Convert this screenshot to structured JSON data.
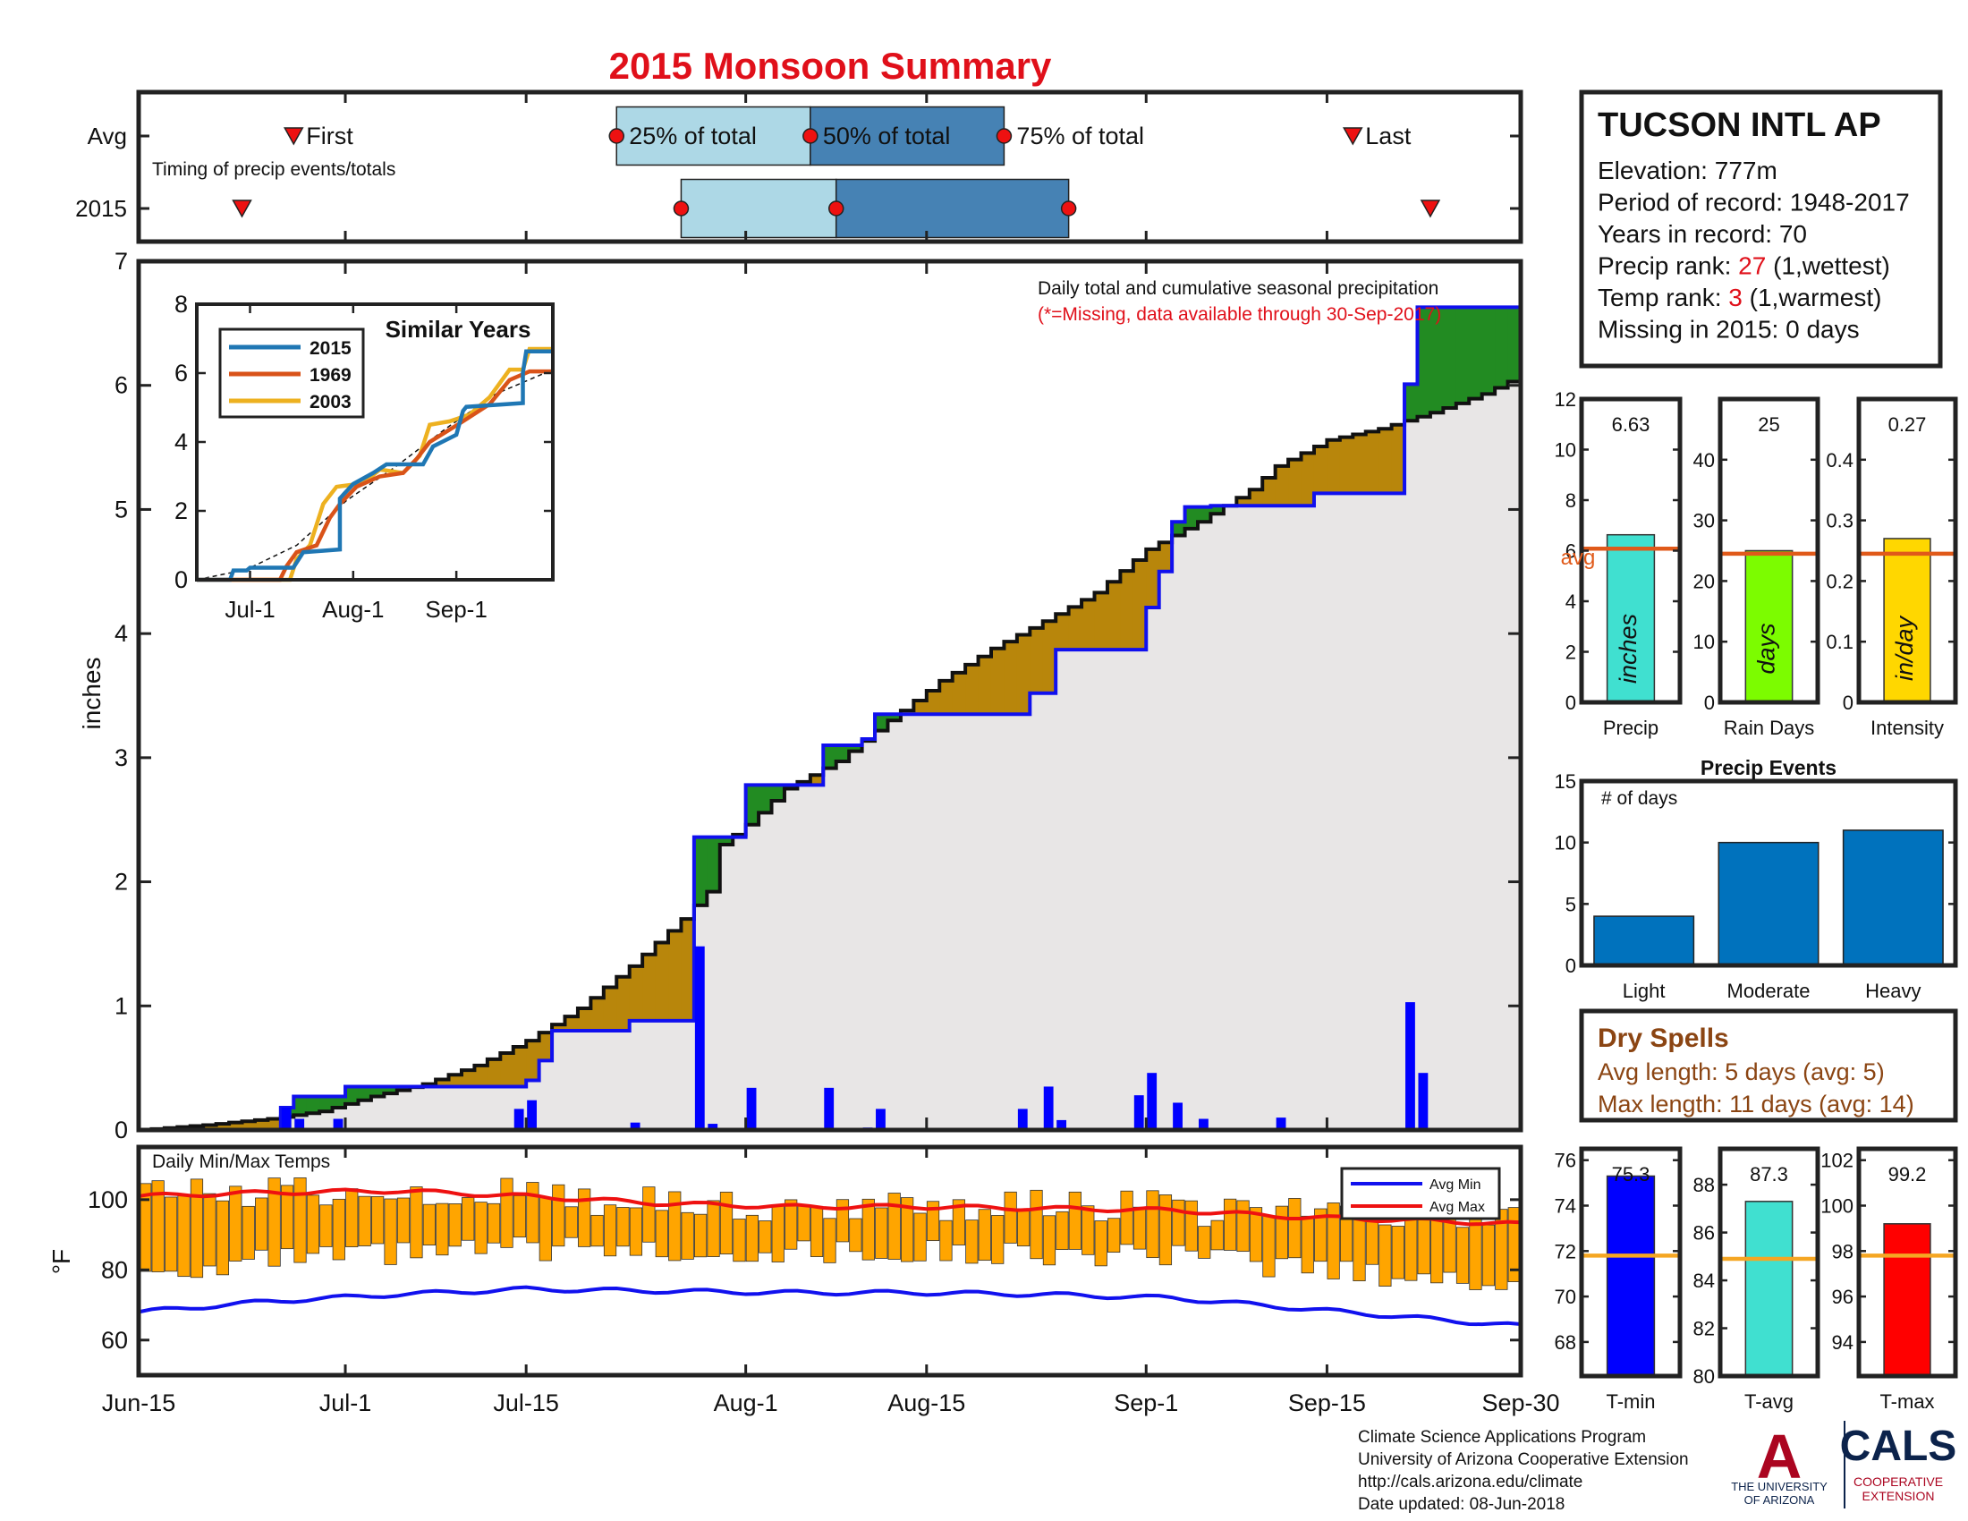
{
  "page": {
    "title": "2015 Monsoon Summary",
    "title_color": "#e0101a"
  },
  "footer": {
    "lines": [
      "Climate Science Applications Program",
      "University of Arizona Cooperative Extension",
      "http://cals.arizona.edu/climate",
      " Date updated: 08-Jun-2018"
    ],
    "logo_ua_letter": "A",
    "logo_ua_text": [
      "THE UNIVERSITY",
      "OF ARIZONA"
    ],
    "logo_cals": "CALS",
    "logo_cals_sub": [
      "COOPERATIVE",
      "EXTENSION"
    ]
  },
  "colors": {
    "above_avg": "#228b22",
    "below_avg": "#b8860b",
    "avg_fill": "#e8e6e6",
    "daily_bar": "#0000ff",
    "temp_bar": "#ffa500",
    "avg_max": "#ee1111",
    "avg_min": "#1111ee",
    "light_blue": "#add8e6",
    "mid_blue": "#4682b4",
    "marker_red": "#ee1111"
  },
  "chart_data": [
    {
      "id": "timing",
      "type": "timeline",
      "rows": [
        "Avg",
        "2015"
      ],
      "note": "Timing of precip events/totals",
      "labels": {
        "first": "First",
        "p25": "25% of total",
        "p50": "50% of total",
        "p75": "75% of total",
        "last": "Last"
      },
      "avg": {
        "first": "2015-06-27",
        "p25": "2015-07-22",
        "p50": "2015-08-06",
        "p75": "2015-08-21",
        "last": "2015-09-17"
      },
      "y2015": {
        "first": "2015-06-23",
        "p25": "2015-07-27",
        "p50": "2015-08-08",
        "p75": "2015-08-26",
        "last": "2015-09-23"
      }
    },
    {
      "id": "cumulative",
      "type": "area",
      "title": "Daily total and cumulative seasonal precipitation",
      "subtitle": "(*=Missing, data available through 30-Sep-2017)",
      "ylabel": "inches",
      "ylim": [
        0,
        7
      ],
      "yticks": [
        0,
        1,
        2,
        3,
        4,
        5,
        6,
        7
      ],
      "xlim": [
        "2015-06-15",
        "2015-09-30"
      ],
      "xticks": [
        "Jun-15",
        "Jul-1",
        "Jul-15",
        "Aug-1",
        "Aug-15",
        "Sep-1",
        "Sep-15",
        "Sep-30"
      ],
      "x_tick_days": [
        0,
        16,
        30,
        47,
        61,
        78,
        92,
        107
      ],
      "avg_cumulative": [
        [
          0,
          0
        ],
        [
          5,
          0.04
        ],
        [
          10,
          0.09
        ],
        [
          14,
          0.15
        ],
        [
          18,
          0.27
        ],
        [
          22,
          0.37
        ],
        [
          26,
          0.52
        ],
        [
          30,
          0.72
        ],
        [
          34,
          0.98
        ],
        [
          38,
          1.32
        ],
        [
          42,
          1.7
        ],
        [
          44,
          1.92
        ],
        [
          45,
          2.3
        ],
        [
          47,
          2.46
        ],
        [
          50,
          2.75
        ],
        [
          54,
          2.97
        ],
        [
          58,
          3.3
        ],
        [
          62,
          3.62
        ],
        [
          66,
          3.88
        ],
        [
          70,
          4.1
        ],
        [
          74,
          4.33
        ],
        [
          78,
          4.68
        ],
        [
          82,
          4.9
        ],
        [
          86,
          5.16
        ],
        [
          88,
          5.35
        ],
        [
          92,
          5.56
        ],
        [
          96,
          5.65
        ],
        [
          100,
          5.78
        ],
        [
          104,
          5.93
        ],
        [
          107,
          6.08
        ]
      ],
      "cum_2015": [
        [
          0,
          0
        ],
        [
          10,
          0
        ],
        [
          11,
          0.18
        ],
        [
          12,
          0.27
        ],
        [
          15,
          0.27
        ],
        [
          16,
          0.35
        ],
        [
          21,
          0.35
        ],
        [
          29,
          0.35
        ],
        [
          30,
          0.4
        ],
        [
          31,
          0.56
        ],
        [
          32,
          0.8
        ],
        [
          36,
          0.8
        ],
        [
          38,
          0.88
        ],
        [
          43,
          0.88
        ],
        [
          43,
          2.36
        ],
        [
          46,
          2.36
        ],
        [
          47,
          2.78
        ],
        [
          52,
          2.78
        ],
        [
          53,
          3.1
        ],
        [
          56,
          3.15
        ],
        [
          57,
          3.35
        ],
        [
          68,
          3.35
        ],
        [
          69,
          3.52
        ],
        [
          71,
          3.87
        ],
        [
          77,
          3.87
        ],
        [
          78,
          4.21
        ],
        [
          79,
          4.5
        ],
        [
          80,
          4.9
        ],
        [
          81,
          5.02
        ],
        [
          83,
          5.03
        ],
        [
          88,
          5.03
        ],
        [
          91,
          5.13
        ],
        [
          98,
          5.13
        ],
        [
          98,
          6.01
        ],
        [
          99,
          6.63
        ],
        [
          107,
          6.63
        ]
      ],
      "daily_2015": [
        [
          11,
          0.18
        ],
        [
          12,
          0.09
        ],
        [
          15,
          0.09
        ],
        [
          29,
          0.17
        ],
        [
          30,
          0.24
        ],
        [
          38,
          0.06
        ],
        [
          43,
          1.48
        ],
        [
          44,
          0.05
        ],
        [
          47,
          0.34
        ],
        [
          53,
          0.34
        ],
        [
          56,
          0.02
        ],
        [
          57,
          0.17
        ],
        [
          68,
          0.17
        ],
        [
          70,
          0.35
        ],
        [
          71,
          0.08
        ],
        [
          77,
          0.28
        ],
        [
          78,
          0.46
        ],
        [
          80,
          0.22
        ],
        [
          82,
          0.09
        ],
        [
          88,
          0.1
        ],
        [
          98,
          1.03
        ],
        [
          99,
          0.46
        ]
      ]
    },
    {
      "id": "similar",
      "type": "line",
      "title": "Similar Years",
      "ylim": [
        0,
        8
      ],
      "yticks": [
        0,
        2,
        4,
        6,
        8
      ],
      "xticks": [
        "Jul-1",
        "Aug-1",
        "Sep-1"
      ],
      "x_tick_days": [
        16,
        47,
        78
      ],
      "series": [
        {
          "name": "2015",
          "color": "#1f77b4",
          "values": [
            [
              0,
              0
            ],
            [
              10,
              0
            ],
            [
              11,
              0.27
            ],
            [
              15,
              0.27
            ],
            [
              16,
              0.35
            ],
            [
              29,
              0.35
            ],
            [
              32,
              0.8
            ],
            [
              43,
              0.88
            ],
            [
              43,
              2.36
            ],
            [
              47,
              2.78
            ],
            [
              53,
              3.1
            ],
            [
              57,
              3.35
            ],
            [
              68,
              3.35
            ],
            [
              71,
              3.87
            ],
            [
              78,
              4.21
            ],
            [
              80,
              4.9
            ],
            [
              81,
              5.02
            ],
            [
              98,
              5.13
            ],
            [
              98,
              6.01
            ],
            [
              99,
              6.63
            ],
            [
              107,
              6.63
            ]
          ]
        },
        {
          "name": "1969",
          "color": "#d95319",
          "values": [
            [
              0,
              0
            ],
            [
              25,
              0
            ],
            [
              27,
              0.4
            ],
            [
              30,
              0.8
            ],
            [
              36,
              1.0
            ],
            [
              40,
              1.8
            ],
            [
              43,
              2.2
            ],
            [
              48,
              2.7
            ],
            [
              55,
              3.0
            ],
            [
              62,
              3.1
            ],
            [
              66,
              3.5
            ],
            [
              70,
              4.0
            ],
            [
              75,
              4.3
            ],
            [
              80,
              4.6
            ],
            [
              88,
              5.1
            ],
            [
              94,
              5.8
            ],
            [
              100,
              6.05
            ],
            [
              107,
              6.05
            ]
          ]
        },
        {
          "name": "2003",
          "color": "#edb120",
          "values": [
            [
              0,
              0
            ],
            [
              28,
              0
            ],
            [
              30,
              0.6
            ],
            [
              34,
              1.0
            ],
            [
              38,
              2.2
            ],
            [
              42,
              2.7
            ],
            [
              50,
              2.8
            ],
            [
              55,
              3.2
            ],
            [
              62,
              3.1
            ],
            [
              67,
              3.6
            ],
            [
              70,
              4.5
            ],
            [
              76,
              4.6
            ],
            [
              82,
              4.8
            ],
            [
              88,
              5.3
            ],
            [
              94,
              6.1
            ],
            [
              98,
              6.1
            ],
            [
              100,
              6.7
            ],
            [
              107,
              6.7
            ]
          ]
        }
      ],
      "avg_dashed": [
        [
          0,
          0
        ],
        [
          15,
          0.3
        ],
        [
          30,
          1.0
        ],
        [
          45,
          2.3
        ],
        [
          60,
          3.3
        ],
        [
          75,
          4.4
        ],
        [
          90,
          5.4
        ],
        [
          107,
          6.1
        ]
      ]
    },
    {
      "id": "temps",
      "type": "bar",
      "title": "Daily Min/Max Temps",
      "ylabel": "°F",
      "ylim": [
        50,
        115
      ],
      "yticks": [
        60,
        80,
        100
      ],
      "legend": [
        "Avg Min",
        "Avg Max"
      ],
      "avg_max": [
        [
          0,
          101
        ],
        [
          10,
          102
        ],
        [
          20,
          102.5
        ],
        [
          30,
          101
        ],
        [
          40,
          99
        ],
        [
          50,
          98
        ],
        [
          60,
          98
        ],
        [
          70,
          97.5
        ],
        [
          80,
          97
        ],
        [
          90,
          95
        ],
        [
          100,
          94
        ],
        [
          107,
          93
        ]
      ],
      "avg_min": [
        [
          0,
          68
        ],
        [
          10,
          71
        ],
        [
          20,
          73
        ],
        [
          30,
          74.5
        ],
        [
          40,
          74
        ],
        [
          50,
          73.5
        ],
        [
          60,
          73.5
        ],
        [
          70,
          73
        ],
        [
          80,
          72
        ],
        [
          90,
          69
        ],
        [
          100,
          66
        ],
        [
          107,
          64
        ]
      ]
    },
    {
      "id": "precip_stats",
      "type": "bar",
      "panels": [
        {
          "name": "Precip",
          "value": 6.63,
          "value_label": "6.63",
          "avg": 6.08,
          "ylim": [
            0,
            12
          ],
          "yticks": [
            0,
            2,
            4,
            6,
            8,
            10,
            12
          ],
          "unit": "inches",
          "color": "#40e0d0",
          "avg_label": "avg"
        },
        {
          "name": "Rain Days",
          "value": 25,
          "value_label": "25",
          "avg": 24.5,
          "ylim": [
            0,
            50
          ],
          "yticks": [
            0,
            10,
            20,
            30,
            40
          ],
          "unit": "days",
          "color": "#7cfc00"
        },
        {
          "name": "Intensity",
          "value": 0.27,
          "value_label": "0.27",
          "avg": 0.245,
          "ylim": [
            0,
            0.5
          ],
          "yticks": [
            0,
            0.1,
            0.2,
            0.3,
            0.4
          ],
          "unit": "in/day",
          "color": "#ffd700"
        }
      ]
    },
    {
      "id": "precip_events",
      "type": "bar",
      "title": "Precip Events",
      "ylabel": "# of days",
      "categories": [
        "Light",
        "Moderate",
        "Heavy"
      ],
      "values": [
        4,
        10,
        11
      ],
      "ylim": [
        0,
        15
      ],
      "yticks": [
        0,
        5,
        10,
        15
      ],
      "color": "#0072bd"
    },
    {
      "id": "temp_stats",
      "type": "bar",
      "panels": [
        {
          "name": "T-min",
          "value": 75.3,
          "value_label": "75.3",
          "avg": 71.8,
          "ylim": [
            66.5,
            76.5
          ],
          "yticks": [
            68,
            70,
            72,
            74,
            76
          ],
          "color": "#0000ff"
        },
        {
          "name": "T-avg",
          "value": 87.3,
          "value_label": "87.3",
          "avg": 84.9,
          "ylim": [
            80,
            89.5
          ],
          "yticks": [
            80,
            82,
            84,
            86,
            88
          ],
          "color": "#40e0d0"
        },
        {
          "name": "T-max",
          "value": 99.2,
          "value_label": "99.2",
          "avg": 97.8,
          "ylim": [
            92.5,
            102.5
          ],
          "yticks": [
            94,
            96,
            98,
            100,
            102
          ],
          "color": "#ff0000"
        }
      ]
    }
  ],
  "station": {
    "name": "TUCSON INTL AP",
    "lines": [
      {
        "text": "Elevation: 777m"
      },
      {
        "text": "Period of record: 1948-2017"
      },
      {
        "text": "Years in record: 70"
      },
      {
        "prefix": "Precip rank: ",
        "highlight": "27",
        "suffix": " (1,wettest)"
      },
      {
        "prefix": "Temp rank: ",
        "highlight": "3",
        "suffix": " (1,warmest)"
      },
      {
        "text": "Missing in 2015: 0 days"
      }
    ],
    "highlight_color": "#e0101a"
  },
  "dry_spells": {
    "title": "Dry Spells",
    "lines": [
      "Avg length: 5 days (avg: 5)",
      "Max length: 11 days (avg: 14)"
    ],
    "color": "#8b4513"
  }
}
